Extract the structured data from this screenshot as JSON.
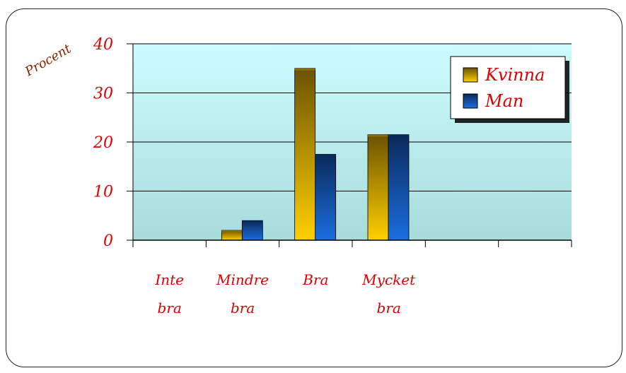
{
  "chart_data": {
    "type": "bar",
    "ylabel": "Procent",
    "ylim": [
      0,
      40
    ],
    "yticks": [
      "0",
      "10",
      "20",
      "30",
      "40"
    ],
    "categories": [
      [
        "Inte",
        "bra"
      ],
      [
        "Mindre",
        "bra"
      ],
      [
        "Bra",
        ""
      ],
      [
        "Mycket",
        "bra"
      ],
      [
        "",
        ""
      ],
      [
        "",
        ""
      ]
    ],
    "series": [
      {
        "name": "Kvinna",
        "values": [
          0,
          2,
          35,
          21.5,
          0,
          0
        ],
        "color": "#f0c000"
      },
      {
        "name": "Man",
        "values": [
          0,
          4,
          17.5,
          21.5,
          0,
          0
        ],
        "color": "#1a5fc8"
      }
    ],
    "grid": true,
    "legend": "top-right",
    "plot_background": "#c8f4f8"
  }
}
